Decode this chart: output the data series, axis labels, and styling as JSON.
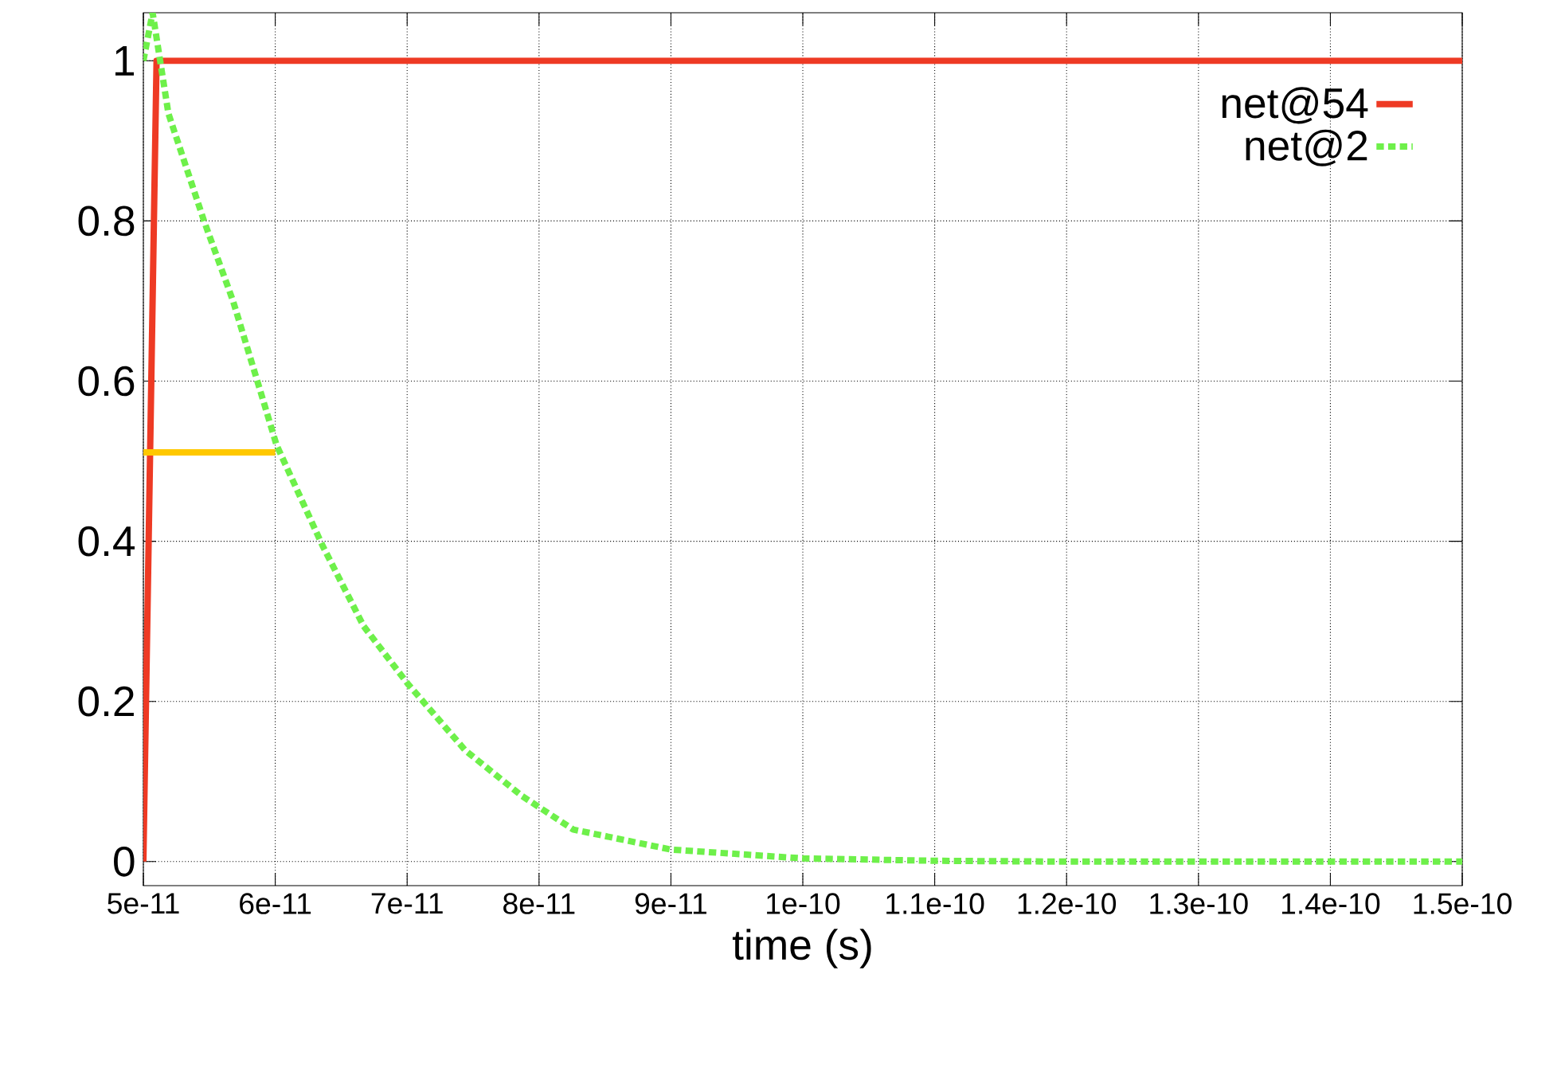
{
  "chart_data": {
    "type": "line",
    "xlabel": "time (s)",
    "xlim": [
      5e-11,
      1.5e-10
    ],
    "ylim": [
      -0.03,
      1.06
    ],
    "xticks": [
      {
        "value": 5e-11,
        "label": "5e-11"
      },
      {
        "value": 6e-11,
        "label": "6e-11"
      },
      {
        "value": 7e-11,
        "label": "7e-11"
      },
      {
        "value": 8e-11,
        "label": "8e-11"
      },
      {
        "value": 9e-11,
        "label": "9e-11"
      },
      {
        "value": 1e-10,
        "label": "1e-10"
      },
      {
        "value": 1.1e-10,
        "label": "1.1e-10"
      },
      {
        "value": 1.2e-10,
        "label": "1.2e-10"
      },
      {
        "value": 1.3e-10,
        "label": "1.3e-10"
      },
      {
        "value": 1.4e-10,
        "label": "1.4e-10"
      },
      {
        "value": 1.5e-10,
        "label": "1.5e-10"
      }
    ],
    "yticks": [
      0,
      0.2,
      0.4,
      0.6,
      0.8,
      1
    ],
    "grid": true,
    "legend": "top right",
    "marker": "none",
    "series": [
      {
        "name": "net@54",
        "color": "#ee3a24",
        "line_style": "solid",
        "x": [
          5e-11,
          5.1e-11,
          1.5e-10
        ],
        "values": [
          0,
          1,
          1
        ]
      },
      {
        "name": "net@2",
        "color": "#6ef04a",
        "line_style": "dotted",
        "x": [
          5e-11,
          5.07e-11,
          5.19e-11,
          5.46e-11,
          5.68e-11,
          5.89e-11,
          6.01e-11,
          6.36e-11,
          6.67e-11,
          7e-11,
          7.44e-11,
          7.87e-11,
          8.26e-11,
          9e-11,
          1e-10,
          1.1e-10,
          1.2e-10,
          1.5e-10
        ],
        "values": [
          1,
          1.06,
          0.934,
          0.8,
          0.7,
          0.586,
          0.52,
          0.394,
          0.294,
          0.223,
          0.139,
          0.082,
          0.04,
          0.015,
          0.004,
          0.001,
          0,
          0
        ]
      },
      {
        "color": "#ffc800",
        "line_style": "solid",
        "x": [
          5e-11,
          6e-11
        ],
        "values": [
          0.511,
          0.511
        ]
      }
    ]
  }
}
